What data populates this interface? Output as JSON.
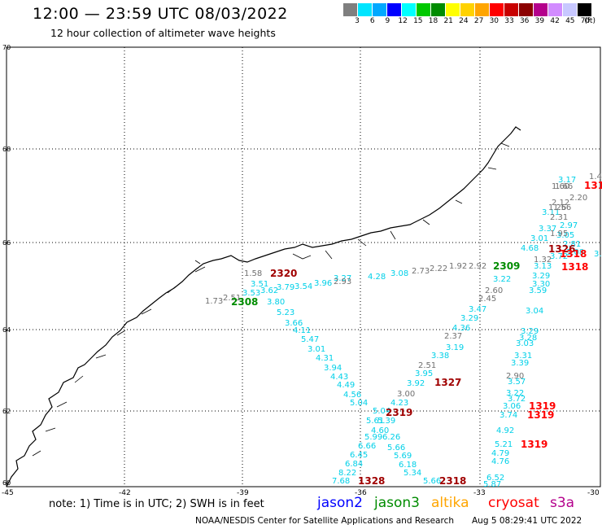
{
  "header": {
    "title": "12:00 — 23:59 UTC 08/03/2022",
    "subtitle": "12 hour collection of altimeter wave heights"
  },
  "color_scale": {
    "labels": [
      "3",
      "6",
      "9",
      "12",
      "15",
      "18",
      "21",
      "24",
      "27",
      "30",
      "33",
      "36",
      "39",
      "42",
      "45",
      "70",
      "(ft)"
    ],
    "colors": [
      "#7f7f7f",
      "#00e5ff",
      "#00a8ff",
      "#0000ff",
      "#00ffff",
      "#00c800",
      "#008c00",
      "#ffff00",
      "#ffd200",
      "#ffa500",
      "#ff0000",
      "#c80000",
      "#8b0000",
      "#b4008c",
      "#d28cff",
      "#c8c8ff",
      "#000000"
    ]
  },
  "axes": {
    "lon_labels": [
      "-45",
      "-42",
      "-39",
      "-36",
      "-33",
      "-30"
    ],
    "lat_labels": [
      "70",
      "68",
      "66",
      "64",
      "62",
      "60"
    ]
  },
  "tracks": {
    "cyan_values": [
      "3.51",
      "3.53",
      "3.62",
      "3.79",
      "3.54",
      "3.96",
      "3.27",
      "4.28",
      "3.08",
      "3.80",
      "5.23",
      "3.66",
      "4.11",
      "5.47",
      "3.01",
      "4.31",
      "3.94",
      "4.43",
      "4.49",
      "4.56",
      "5.04",
      "5.04",
      "5.39",
      "5.61",
      "4.60",
      "5.99",
      "6.26",
      "6.66",
      "5.66",
      "6.45",
      "5.69",
      "6.84",
      "6.18",
      "8.22",
      "5.34",
      "7.68",
      "5.66",
      "3.47",
      "3.29",
      "4.36",
      "3.19",
      "3.38",
      "3.95",
      "3.92",
      "4.23",
      "3.17",
      "3.11",
      "3.37",
      "3.01",
      "4.68",
      "3.72",
      "3.13",
      "3.29",
      "3.22",
      "3.30",
      "3.59",
      "3.04",
      "3.29",
      "3.28",
      "3.03",
      "3.31",
      "3.39",
      "3.57",
      "3.22",
      "3.72",
      "3.06",
      "3.74",
      "4.92",
      "5.21",
      "4.79",
      "4.76",
      "6.52",
      "5.87",
      "3.69",
      "2.97",
      "3.05",
      "2.81",
      "3.08"
    ],
    "gray_values": [
      "1.58",
      "1.73",
      "2.51",
      "2.93",
      "2.73",
      "2.22",
      "1.92",
      "2.92",
      "2.60",
      "2.45",
      "2.37",
      "2.51",
      "3.00",
      "1.32",
      "1.60",
      "1.66",
      "1.56",
      "2.20",
      "2.12",
      "1.26",
      "2.31",
      "1.95",
      "1.4",
      "2.90"
    ],
    "passes": [
      {
        "text": "2320",
        "color": "#a00000"
      },
      {
        "text": "2308",
        "color": "#008c00"
      },
      {
        "text": "2309",
        "color": "#008c00"
      },
      {
        "text": "1326",
        "color": "#a00000"
      },
      {
        "text": "1318",
        "color": "#ff0000"
      },
      {
        "text": "1318",
        "color": "#ff0000"
      },
      {
        "text": "1327",
        "color": "#a00000"
      },
      {
        "text": "2319",
        "color": "#a00000"
      },
      {
        "text": "1319",
        "color": "#ff0000"
      },
      {
        "text": "1319",
        "color": "#ff0000"
      },
      {
        "text": "1319",
        "color": "#ff0000"
      },
      {
        "text": "1328",
        "color": "#a00000"
      },
      {
        "text": "2318",
        "color": "#a00000"
      },
      {
        "text": "131",
        "color": "#ff0000"
      }
    ]
  },
  "footer": {
    "note": "note:  1) Time is in UTC;  2) SWH is in feet",
    "satellites": [
      {
        "name": "jason2",
        "color": "#0000ff"
      },
      {
        "name": "jason3",
        "color": "#008c00"
      },
      {
        "name": "altika",
        "color": "#ffa500"
      },
      {
        "name": "cryosat",
        "color": "#ff0000"
      },
      {
        "name": "s3a",
        "color": "#b4008c"
      }
    ],
    "credit": "NOAA/NESDIS Center for Satellite Applications and Research",
    "timestamp": "Aug  5 08:29:41 UTC 2022"
  }
}
